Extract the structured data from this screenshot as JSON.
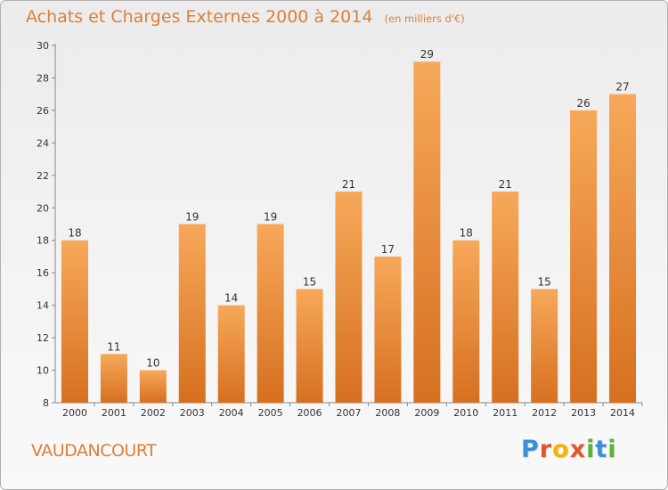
{
  "header": {
    "title": "Achats et Charges Externes 2000 à 2014",
    "subtitle": "(en milliers d'€)"
  },
  "footer": {
    "place": "VAUDANCOURT",
    "logo_letters": [
      "P",
      "r",
      "o",
      "x",
      "i",
      "t",
      "i"
    ],
    "logo_colors": [
      "#3a8fd8",
      "#e0572b",
      "#f2b705",
      "#e0572b",
      "#5bb535",
      "#3a8fd8",
      "#5bb535"
    ]
  },
  "chart_data": {
    "type": "bar",
    "categories": [
      "2000",
      "2001",
      "2002",
      "2003",
      "2004",
      "2005",
      "2006",
      "2007",
      "2008",
      "2009",
      "2010",
      "2011",
      "2012",
      "2013",
      "2014"
    ],
    "values": [
      18,
      11,
      10,
      19,
      14,
      19,
      15,
      21,
      17,
      29,
      18,
      21,
      15,
      26,
      27
    ],
    "ylim": [
      8,
      30
    ],
    "yticks": [
      8,
      10,
      12,
      14,
      16,
      18,
      20,
      22,
      24,
      26,
      28,
      30
    ],
    "grid": false,
    "bar_color_light": "#f7a85a",
    "bar_color_dark": "#d67020"
  }
}
